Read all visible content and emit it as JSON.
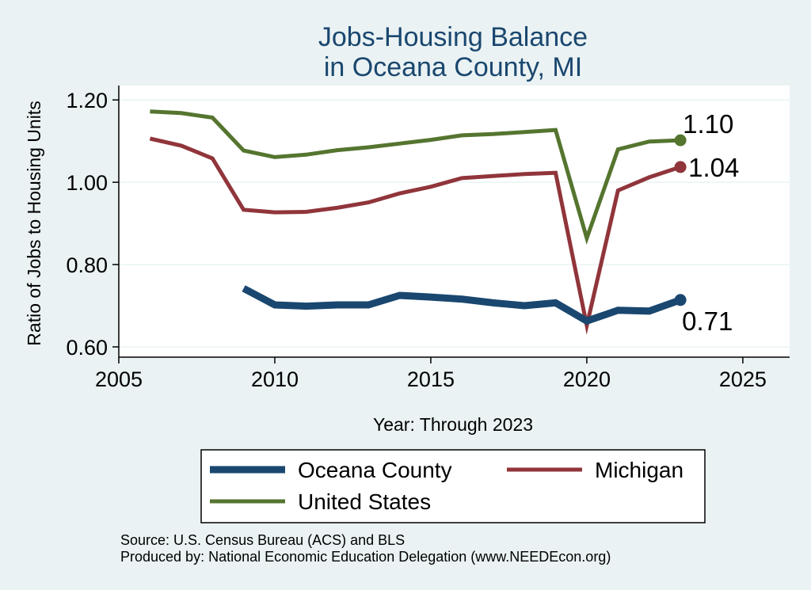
{
  "chart_data": {
    "type": "line",
    "title": [
      "Jobs-Housing Balance",
      "in Oceana County, MI"
    ],
    "xlabel": "Year: Through 2023",
    "ylabel": "Ratio of Jobs to Housing Units",
    "xlim": [
      2005,
      2026.5
    ],
    "ylim": [
      0.575,
      1.235
    ],
    "xticks": [
      2005,
      2010,
      2015,
      2020,
      2025
    ],
    "yticks": [
      0.6,
      0.8,
      1.0,
      1.2
    ],
    "ytick_labels": [
      "0.60",
      "0.80",
      "1.00",
      "1.20"
    ],
    "grid": true,
    "legend_position": "bottom",
    "series": [
      {
        "name": "Oceana County",
        "color": "#1a476f",
        "x": [
          2009,
          2010,
          2011,
          2012,
          2013,
          2014,
          2015,
          2016,
          2017,
          2018,
          2019,
          2020,
          2021,
          2022,
          2023
        ],
        "values": [
          0.742,
          0.702,
          0.699,
          0.702,
          0.702,
          0.725,
          0.721,
          0.716,
          0.707,
          0.7,
          0.707,
          0.663,
          0.689,
          0.687,
          0.714
        ],
        "end_label": "0.71"
      },
      {
        "name": "Michigan",
        "color": "#90353b",
        "x": [
          2006,
          2007,
          2008,
          2009,
          2010,
          2011,
          2012,
          2013,
          2014,
          2015,
          2016,
          2017,
          2018,
          2019,
          2020,
          2021,
          2022,
          2023
        ],
        "values": [
          1.106,
          1.089,
          1.058,
          0.933,
          0.927,
          0.928,
          0.938,
          0.951,
          0.973,
          0.989,
          1.01,
          1.015,
          1.02,
          1.023,
          0.652,
          0.98,
          1.012,
          1.037
        ],
        "end_label": "1.04"
      },
      {
        "name": "United States",
        "color": "#55752f",
        "x": [
          2006,
          2007,
          2008,
          2009,
          2010,
          2011,
          2012,
          2013,
          2014,
          2015,
          2016,
          2017,
          2018,
          2019,
          2020,
          2021,
          2022,
          2023
        ],
        "values": [
          1.172,
          1.168,
          1.157,
          1.077,
          1.061,
          1.067,
          1.078,
          1.085,
          1.094,
          1.103,
          1.114,
          1.117,
          1.122,
          1.127,
          0.864,
          1.08,
          1.099,
          1.102
        ],
        "end_label": "1.10"
      }
    ]
  },
  "source_note": "Source: U.S. Census Bureau (ACS) and BLS",
  "producer_note": "Produced by: National Economic Education Delegation (www.NEEDEcon.org)"
}
